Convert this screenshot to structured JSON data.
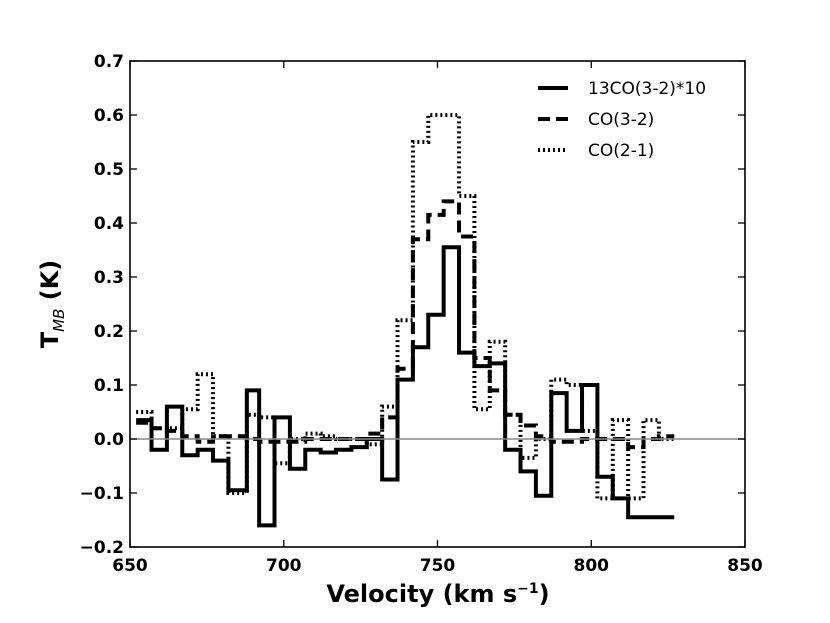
{
  "chart_data": {
    "type": "line",
    "style": "step",
    "title": "",
    "xlabel": "Velocity (km s",
    "xlabel_superscript": "−1",
    "xlabel_close": ")",
    "ylabel_main": "T",
    "ylabel_sub": "MB",
    "ylabel_unit": " (K)",
    "xlim": [
      650,
      850
    ],
    "ylim": [
      -0.2,
      0.7
    ],
    "xticks": [
      650,
      700,
      750,
      800,
      850
    ],
    "yticks": [
      -0.2,
      -0.1,
      0.0,
      0.1,
      0.2,
      0.3,
      0.4,
      0.5,
      0.6,
      0.7
    ],
    "xtick_labels": [
      "650",
      "700",
      "750",
      "800",
      "850"
    ],
    "ytick_labels": [
      "−0.2",
      "−0.1",
      "0.0",
      "0.1",
      "0.2",
      "0.3",
      "0.4",
      "0.5",
      "0.6",
      "0.7"
    ],
    "grid": false,
    "zero_line": 0.0,
    "legend_position": "top-right",
    "series": [
      {
        "name": "13CO(3-2)*10",
        "style": "solid",
        "color": "#000000",
        "x": [
          652,
          657,
          662,
          667,
          672,
          677,
          682,
          688,
          692,
          697,
          702,
          707,
          712,
          717,
          722,
          727,
          732,
          737,
          742,
          747,
          752,
          757,
          762,
          767,
          772,
          777,
          782,
          787,
          792,
          797,
          802,
          807,
          812,
          817,
          822,
          827
        ],
        "values": [
          0.035,
          -0.02,
          0.06,
          -0.03,
          -0.02,
          -0.04,
          -0.095,
          0.09,
          -0.16,
          0.04,
          -0.055,
          -0.02,
          -0.025,
          -0.02,
          -0.015,
          0.0,
          -0.075,
          0.11,
          0.17,
          0.23,
          0.355,
          0.16,
          0.135,
          0.14,
          -0.02,
          -0.06,
          -0.105,
          0.085,
          0.015,
          0.1,
          -0.07,
          -0.11,
          -0.145,
          -0.145,
          -0.145,
          -0.145
        ]
      },
      {
        "name": "CO(3-2)",
        "style": "dashed",
        "color": "#000000",
        "x": [
          652,
          657,
          662,
          667,
          672,
          677,
          682,
          688,
          692,
          697,
          702,
          707,
          712,
          717,
          722,
          727,
          732,
          737,
          742,
          747,
          752,
          757,
          762,
          767,
          772,
          777,
          782,
          787,
          792,
          797,
          802,
          807,
          812,
          817,
          822,
          827
        ],
        "values": [
          0.03,
          0.02,
          0.015,
          0.005,
          -0.005,
          0.005,
          0.005,
          0.0,
          -0.005,
          -0.005,
          -0.005,
          0.0,
          0.0,
          0.0,
          0.0,
          0.01,
          0.04,
          0.13,
          0.37,
          0.415,
          0.44,
          0.375,
          0.15,
          0.09,
          0.045,
          0.025,
          0.005,
          -0.005,
          -0.005,
          0.0,
          0.0,
          0.0,
          -0.015,
          0.0,
          0.005,
          0.005
        ]
      },
      {
        "name": "CO(2-1)",
        "style": "dotted",
        "color": "#000000",
        "x": [
          652,
          657,
          662,
          667,
          672,
          677,
          682,
          688,
          692,
          697,
          702,
          707,
          712,
          717,
          722,
          727,
          732,
          737,
          742,
          747,
          752,
          757,
          762,
          767,
          772,
          777,
          782,
          787,
          792,
          797,
          802,
          807,
          812,
          817,
          822,
          827
        ],
        "values": [
          0.05,
          0.02,
          0.02,
          0.055,
          0.12,
          0.005,
          -0.1,
          0.045,
          0.04,
          -0.045,
          0.0,
          0.01,
          0.005,
          0.0,
          0.0,
          -0.01,
          0.06,
          0.22,
          0.55,
          0.6,
          0.6,
          0.45,
          0.055,
          0.18,
          0.045,
          -0.035,
          0.0,
          0.11,
          0.1,
          0.015,
          -0.11,
          0.035,
          -0.11,
          0.035,
          0.0,
          0.0
        ]
      }
    ]
  }
}
